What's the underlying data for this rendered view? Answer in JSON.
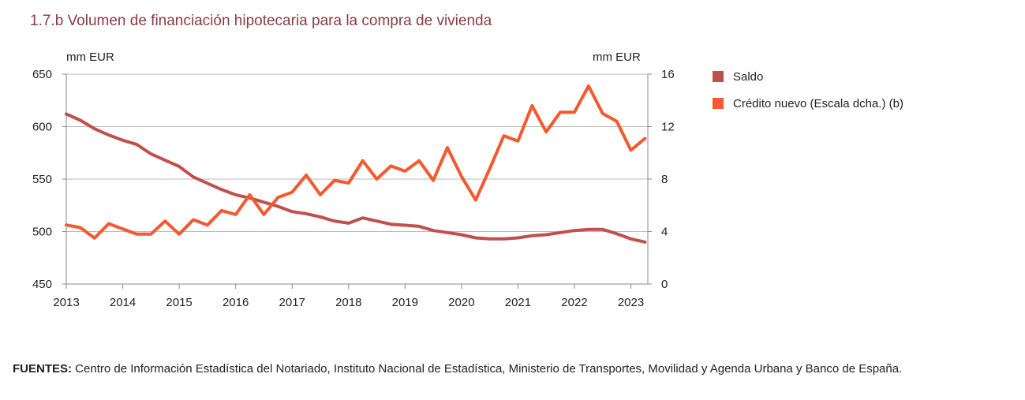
{
  "header": {
    "title": "1.7.b  Volumen de financiación hipotecaria para la compra de vivienda"
  },
  "chart_data": {
    "type": "line",
    "y_unit_left": "mm EUR",
    "y_unit_right": "mm EUR",
    "ylim_left": [
      450,
      650
    ],
    "ylim_right": [
      0,
      16
    ],
    "yticks_left": [
      "450",
      "500",
      "550",
      "600",
      "650"
    ],
    "yticks_right": [
      "0",
      "4",
      "8",
      "12",
      "16"
    ],
    "xlim": [
      2013,
      2023.3
    ],
    "xticks": [
      "2013",
      "2014",
      "2015",
      "2016",
      "2017",
      "2018",
      "2019",
      "2020",
      "2021",
      "2022",
      "2023"
    ],
    "grid": true,
    "legend_position": "right",
    "series": [
      {
        "name": "Saldo",
        "axis": "left",
        "color": "#c0504d",
        "x": [
          2013,
          2013.25,
          2013.5,
          2013.75,
          2014,
          2014.25,
          2014.5,
          2014.75,
          2015,
          2015.25,
          2015.5,
          2015.75,
          2016,
          2016.25,
          2016.5,
          2016.75,
          2017,
          2017.25,
          2017.5,
          2017.75,
          2018,
          2018.25,
          2018.5,
          2018.75,
          2019,
          2019.25,
          2019.5,
          2019.75,
          2020,
          2020.25,
          2020.5,
          2020.75,
          2021,
          2021.25,
          2021.5,
          2021.75,
          2022,
          2022.25,
          2022.5,
          2022.75,
          2023,
          2023.25
        ],
        "values": [
          612,
          606,
          598,
          592,
          587,
          583,
          574,
          568,
          562,
          552,
          546,
          540,
          535,
          532,
          528,
          524,
          519,
          517,
          514,
          510,
          508,
          513,
          510,
          507,
          506,
          505,
          501,
          499,
          497,
          494,
          493,
          493,
          494,
          496,
          497,
          499,
          501,
          502,
          502,
          498,
          493,
          490
        ]
      },
      {
        "name": "Crédito nuevo (Escala dcha.) (b)",
        "axis": "right",
        "color": "#f4592f",
        "x": [
          2013,
          2013.25,
          2013.5,
          2013.75,
          2014,
          2014.25,
          2014.5,
          2014.75,
          2015,
          2015.25,
          2015.5,
          2015.75,
          2016,
          2016.25,
          2016.5,
          2016.75,
          2017,
          2017.25,
          2017.5,
          2017.75,
          2018,
          2018.25,
          2018.5,
          2018.75,
          2019,
          2019.25,
          2019.5,
          2019.75,
          2020,
          2020.25,
          2020.5,
          2020.75,
          2021,
          2021.25,
          2021.5,
          2021.75,
          2022,
          2022.25,
          2022.5,
          2022.75,
          2023,
          2023.25
        ],
        "values": [
          4.5,
          4.3,
          3.5,
          4.6,
          4.2,
          3.8,
          3.8,
          4.8,
          3.8,
          4.9,
          4.5,
          5.6,
          5.3,
          6.8,
          5.3,
          6.6,
          7.0,
          8.3,
          6.8,
          7.9,
          7.7,
          9.4,
          8.0,
          9.0,
          8.6,
          9.4,
          7.9,
          10.4,
          8.2,
          6.4,
          8.8,
          11.3,
          10.9,
          13.6,
          11.6,
          13.1,
          13.1,
          15.1,
          13.0,
          12.4,
          10.2,
          11.1
        ]
      }
    ]
  },
  "source": {
    "label": "FUENTES:",
    "text": "Centro de Información Estadística del Notariado, Instituto Nacional de Estadística, Ministerio de Transportes, Movilidad y Agenda Urbana y Banco de España."
  }
}
